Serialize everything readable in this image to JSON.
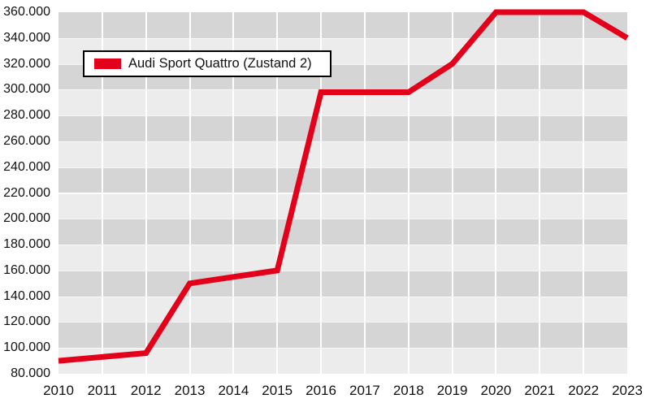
{
  "chart_data": {
    "type": "line",
    "title": "",
    "categories": [
      "2010",
      "2011",
      "2012",
      "2013",
      "2014",
      "2015",
      "2016",
      "2017",
      "2018",
      "2019",
      "2020",
      "2021",
      "2022",
      "2023"
    ],
    "series": [
      {
        "name": "Audi Sport Quattro (Zustand 2)",
        "color": "#e2001a",
        "values": [
          90000,
          93000,
          96000,
          150000,
          155000,
          160000,
          298000,
          298000,
          298000,
          320000,
          360000,
          360000,
          360000,
          340000
        ]
      }
    ],
    "xlabel": "",
    "ylabel": "",
    "ylim": [
      80000,
      360000
    ],
    "ytick_step": 20000,
    "ytick_labels_top_to_bottom": [
      "360.000",
      "340.000",
      "320.000",
      "300.000",
      "280.000",
      "260.000",
      "240.000",
      "220.000",
      "200.000",
      "180.000",
      "160.000",
      "140.000",
      "120.000",
      "100.000",
      "80.000"
    ],
    "legend": {
      "position": "top-left",
      "entries": [
        {
          "label": "Audi Sport Quattro (Zustand 2)",
          "swatch_color": "#e2001a"
        }
      ]
    },
    "grid": {
      "horizontal_bands": true,
      "band_colors_top_first": [
        "#d5d5d5",
        "#ececec"
      ],
      "vertical_gridline_color": "#ffffff"
    },
    "background": "#ffffff"
  }
}
